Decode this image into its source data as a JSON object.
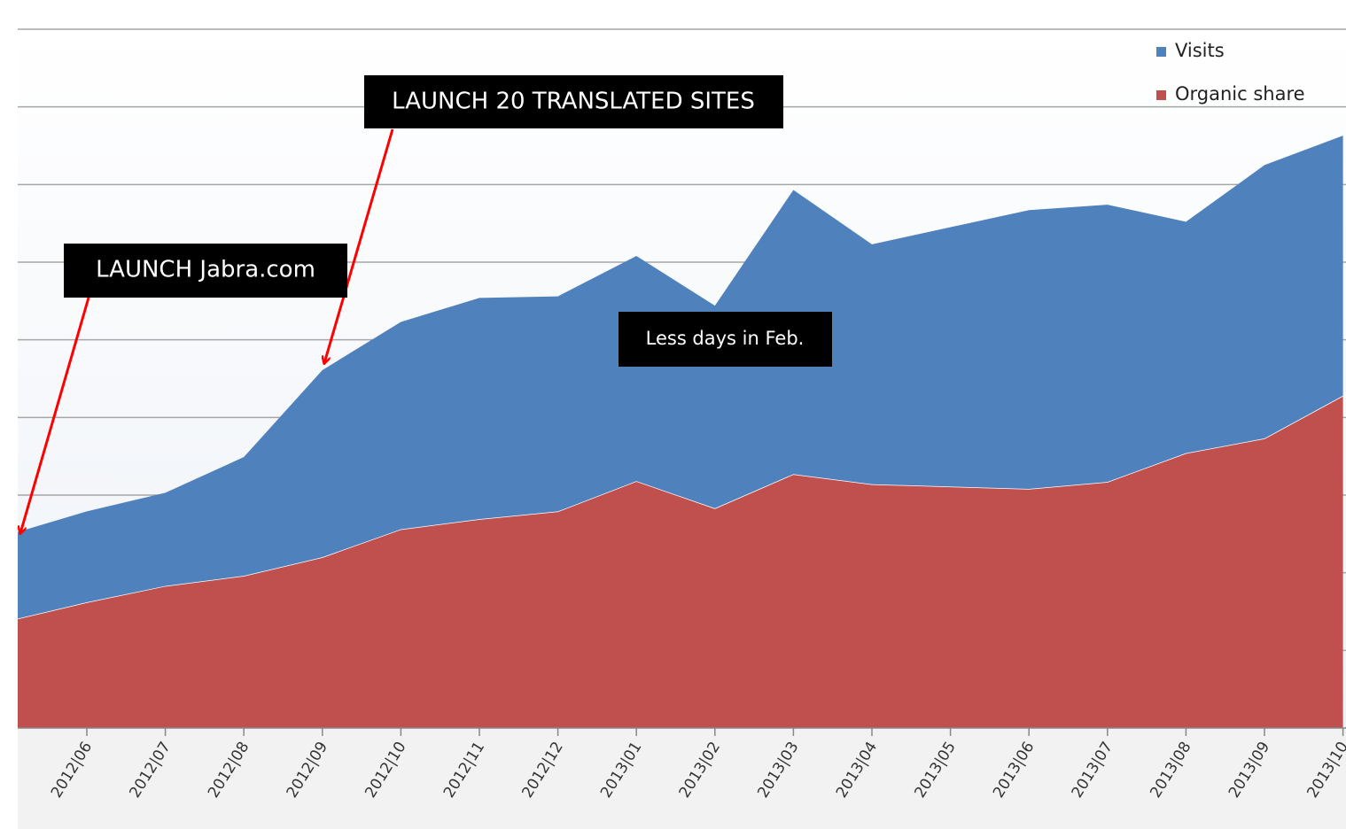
{
  "chart_data": {
    "type": "stacked_area",
    "categories": [
      null,
      "2012|06",
      "2012|07",
      "2012|08",
      "2012|09",
      "2012|10",
      "2012|11",
      "2012|12",
      "2013|01",
      "2013|02",
      "2013|03",
      "2013|04",
      "2013|05",
      "2013|06",
      "2013|07",
      "2013|08",
      "2013|09",
      "2013|10"
    ],
    "series": [
      {
        "name": "Visits",
        "color": "#4f81bd",
        "values": [
          1.11,
          1.17,
          1.2,
          1.53,
          2.41,
          2.67,
          2.85,
          2.77,
          2.9,
          2.61,
          3.66,
          3.09,
          3.34,
          3.59,
          3.57,
          2.98,
          3.52,
          3.35
        ]
      },
      {
        "name": "Organic share",
        "color": "#c0504d",
        "values": [
          1.38,
          1.62,
          1.83,
          1.96,
          2.2,
          2.56,
          2.69,
          2.79,
          3.18,
          2.83,
          3.27,
          3.14,
          3.11,
          3.08,
          3.17,
          3.54,
          3.73,
          4.28
        ]
      }
    ],
    "ylim": [
      0,
      9
    ],
    "yticks": [
      1,
      2,
      3,
      4,
      5,
      6,
      7,
      8,
      9
    ],
    "grid": true,
    "legend": "top-right",
    "annotations": [
      "LAUNCH Jabra.com",
      "LAUNCH 20 TRANSLATED SITES",
      "Less days in Feb."
    ]
  }
}
